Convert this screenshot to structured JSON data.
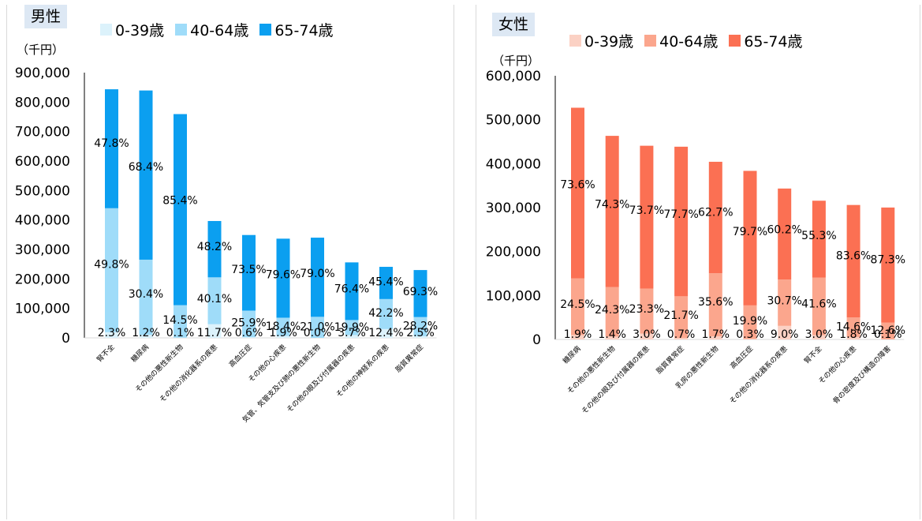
{
  "chart_data": [
    {
      "type": "bar",
      "stacked": true,
      "title": "男性",
      "unit_label": "（千円）",
      "ylim": [
        0,
        900000
      ],
      "yticks": [
        "0",
        "100,000",
        "200,000",
        "300,000",
        "400,000",
        "500,000",
        "600,000",
        "700,000",
        "800,000",
        "900,000"
      ],
      "categories": [
        "腎不全",
        "糖尿病",
        "その他の悪性新生物",
        "その他の消化器系の疾患",
        "高血圧症",
        "その他の心疾患",
        "気管、気管支及び肺の悪性新生物",
        "その他の眼及び付属器の疾患",
        "その他の神経系の疾患",
        "脂質異常症"
      ],
      "series": [
        {
          "name": "0-39歳",
          "color": "#dcf2fb",
          "values": [
            19400,
            10100,
            800,
            46400,
            2100,
            6400,
            0,
            9500,
            29900,
            5700
          ],
          "labels": [
            "2.3%",
            "1.2%",
            "0.1%",
            "11.7%",
            "0.6%",
            "1.9%",
            "0.0%",
            "3.7%",
            "12.4%",
            "2.5%"
          ]
        },
        {
          "name": "40-64歳",
          "color": "#9fdcf9",
          "values": [
            420500,
            255200,
            110100,
            159000,
            90400,
            62000,
            71400,
            51000,
            101800,
            64900
          ],
          "labels": [
            "49.8%",
            "30.4%",
            "14.5%",
            "40.1%",
            "25.9%",
            "18.4%",
            "21.0%",
            "19.9%",
            "42.2%",
            "28.2%"
          ]
        },
        {
          "name": "65-74歳",
          "color": "#0b9ff0",
          "values": [
            403600,
            574100,
            648400,
            191100,
            256500,
            268200,
            268600,
            195600,
            109300,
            159500
          ],
          "labels": [
            "47.8%",
            "68.4%",
            "85.4%",
            "48.2%",
            "73.5%",
            "79.6%",
            "79.0%",
            "76.4%",
            "45.4%",
            "69.3%"
          ]
        }
      ]
    },
    {
      "type": "bar",
      "stacked": true,
      "title": "女性",
      "unit_label": "（千円）",
      "ylim": [
        0,
        600000
      ],
      "yticks": [
        "0",
        "100,000",
        "200,000",
        "300,000",
        "400,000",
        "500,000",
        "600,000"
      ],
      "categories": [
        "糖尿病",
        "その他の悪性新生物",
        "その他の眼及び付属器の疾患",
        "脂質異常症",
        "乳房の悪性新生物",
        "高血圧症",
        "その他の消化器系の疾患",
        "腎不全",
        "その他の心疾患",
        "骨の密度及び構造の障害"
      ],
      "series": [
        {
          "name": "0-39歳",
          "color": "#fbd1c4",
          "values": [
            10000,
            6500,
            13200,
            3100,
            6900,
            1100,
            30900,
            9500,
            5500,
            300
          ],
          "labels": [
            "1.9%",
            "1.4%",
            "3.0%",
            "0.7%",
            "1.7%",
            "0.3%",
            "9.0%",
            "3.0%",
            "1.8%",
            "0.1%"
          ]
        },
        {
          "name": "40-64歳",
          "color": "#fba68d",
          "values": [
            129200,
            112600,
            102700,
            95100,
            143800,
            76400,
            105500,
            131500,
            44700,
            37900
          ],
          "labels": [
            "24.5%",
            "24.3%",
            "23.3%",
            "21.7%",
            "35.6%",
            "19.9%",
            "30.7%",
            "41.6%",
            "14.6%",
            "12.6%"
          ]
        },
        {
          "name": "65-74歳",
          "color": "#fb7053",
          "values": [
            388100,
            344200,
            324900,
            340400,
            253600,
            306100,
            207000,
            174700,
            255800,
            262000
          ],
          "labels": [
            "73.6%",
            "74.3%",
            "73.7%",
            "77.7%",
            "62.7%",
            "79.7%",
            "60.2%",
            "55.3%",
            "83.6%",
            "87.3%"
          ]
        }
      ]
    }
  ]
}
